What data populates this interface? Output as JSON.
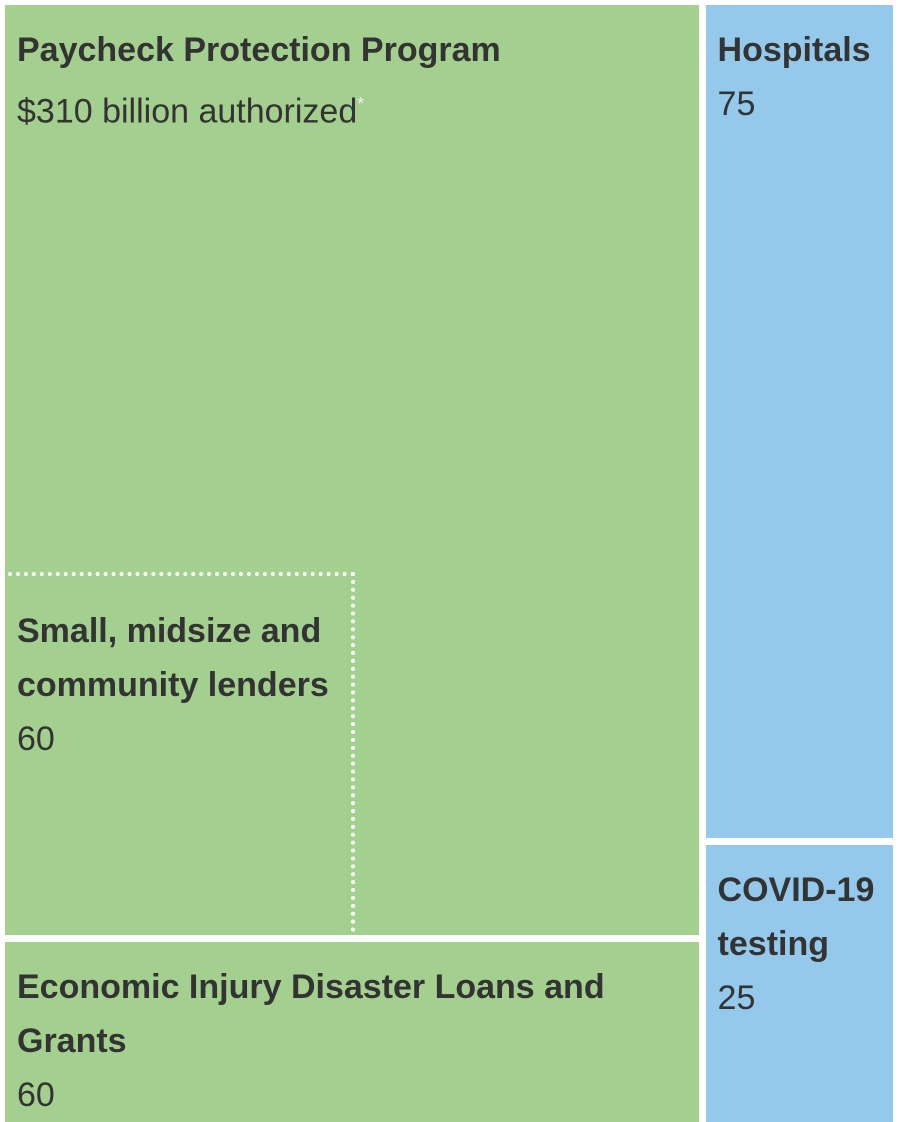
{
  "chart_data": {
    "type": "treemap",
    "groups": [
      {
        "color": "#a3d08f",
        "items": [
          {
            "name": "Paycheck Protection Program",
            "value": 310,
            "value_label": "$310 billion authorized",
            "note": "*",
            "children": [
              {
                "name": "Small, midsize and community lenders",
                "value": 60
              }
            ]
          },
          {
            "name": "Economic Injury Disaster Loans and Grants",
            "value": 60
          }
        ]
      },
      {
        "color": "#95c9ec",
        "items": [
          {
            "name": "Hospitals",
            "value": 75
          },
          {
            "name": "COVID-19 testing",
            "value": 25
          }
        ]
      }
    ]
  }
}
